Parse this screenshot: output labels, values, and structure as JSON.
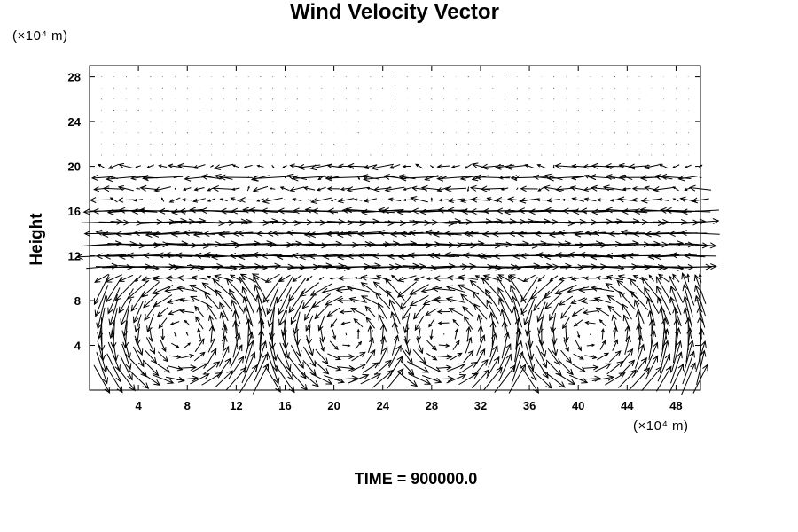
{
  "chart_data": {
    "type": "vector-field",
    "title": "Wind Velocity Vector",
    "ylabel": "Height",
    "y_unit": "(×10⁴ m)",
    "x_unit": "(×10⁴ m)",
    "xlim": [
      0,
      50
    ],
    "ylim": [
      0,
      29
    ],
    "x_ticks": [
      4,
      8,
      12,
      16,
      20,
      24,
      28,
      32,
      36,
      40,
      44,
      48
    ],
    "y_ticks": [
      4,
      8,
      12,
      16,
      20,
      24,
      28
    ],
    "grid_spacing_x": 1,
    "grid_spacing_y": 1,
    "regions": [
      {
        "range": "0-10",
        "pattern": "four convective rolls (circulation cells)"
      },
      {
        "range": "11-16",
        "pattern": "strong horizontal jets, alternating direction, interleaved"
      },
      {
        "range": "17-20",
        "pattern": "moderate predominantly leftward flow"
      },
      {
        "range": "21-29",
        "pattern": "near-calm, dot-size vectors"
      }
    ],
    "annotation": "TIME = 900000.0"
  },
  "colors": {
    "axes": "#000000",
    "vectors": "#000000",
    "background": "#ffffff"
  }
}
